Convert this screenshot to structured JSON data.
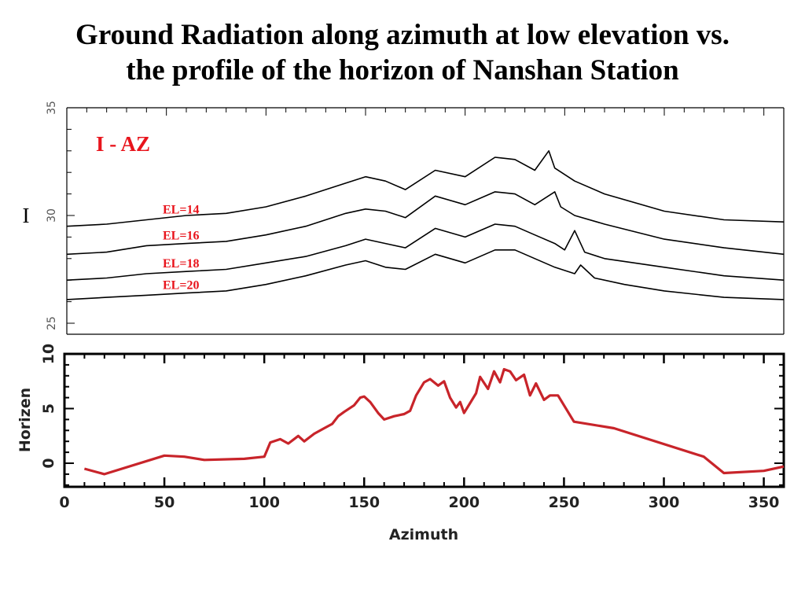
{
  "slide": {
    "title_line1": "Ground Radiation along azimuth at low elevation vs.",
    "title_line2": "the profile of the horizon of Nanshan Station"
  },
  "colors": {
    "annotation_red": "#e8141c",
    "horizon_line": "#c8242a",
    "trace_black": "#000000"
  },
  "chart_data": [
    {
      "type": "line",
      "title": "I - AZ",
      "ylabel": "I",
      "ylim": [
        25,
        35
      ],
      "yticks": [
        25,
        30,
        35
      ],
      "xlim": [
        0,
        360
      ],
      "series": [
        {
          "name": "EL=14",
          "x": [
            0,
            20,
            40,
            60,
            80,
            100,
            120,
            140,
            150,
            160,
            170,
            185,
            200,
            215,
            225,
            235,
            242,
            245,
            255,
            270,
            300,
            330,
            360
          ],
          "y": [
            29.5,
            29.6,
            29.8,
            30.0,
            30.1,
            30.4,
            30.9,
            31.5,
            31.8,
            31.6,
            31.2,
            32.1,
            31.8,
            32.7,
            32.6,
            32.1,
            33.0,
            32.2,
            31.6,
            31.0,
            30.2,
            29.8,
            29.7
          ]
        },
        {
          "name": "EL=16",
          "x": [
            0,
            20,
            40,
            60,
            80,
            100,
            120,
            140,
            150,
            160,
            170,
            185,
            200,
            215,
            225,
            235,
            245,
            248,
            255,
            270,
            300,
            330,
            360
          ],
          "y": [
            28.2,
            28.3,
            28.6,
            28.7,
            28.8,
            29.1,
            29.5,
            30.1,
            30.3,
            30.2,
            29.9,
            30.9,
            30.5,
            31.1,
            31.0,
            30.5,
            31.1,
            30.4,
            30.0,
            29.6,
            28.9,
            28.5,
            28.2
          ]
        },
        {
          "name": "EL=18",
          "x": [
            0,
            20,
            40,
            60,
            80,
            100,
            120,
            140,
            150,
            160,
            170,
            185,
            200,
            215,
            225,
            235,
            245,
            250,
            255,
            260,
            270,
            300,
            330,
            360
          ],
          "y": [
            27.0,
            27.1,
            27.3,
            27.4,
            27.5,
            27.8,
            28.1,
            28.6,
            28.9,
            28.7,
            28.5,
            29.4,
            29.0,
            29.6,
            29.5,
            29.1,
            28.7,
            28.4,
            29.3,
            28.3,
            28.0,
            27.6,
            27.2,
            27.0
          ]
        },
        {
          "name": "EL=20",
          "x": [
            0,
            20,
            40,
            60,
            80,
            100,
            120,
            140,
            150,
            160,
            170,
            185,
            200,
            215,
            225,
            235,
            245,
            255,
            258,
            265,
            280,
            300,
            330,
            360
          ],
          "y": [
            26.1,
            26.2,
            26.3,
            26.4,
            26.5,
            26.8,
            27.2,
            27.7,
            27.9,
            27.6,
            27.5,
            28.2,
            27.8,
            28.4,
            28.4,
            28.0,
            27.6,
            27.3,
            27.7,
            27.1,
            26.8,
            26.5,
            26.2,
            26.1
          ]
        }
      ]
    },
    {
      "type": "line",
      "xlabel": "Azimuth",
      "ylabel": "Horizen",
      "xlim": [
        0,
        360
      ],
      "ylim": [
        -2,
        10
      ],
      "xticks": [
        0,
        50,
        100,
        150,
        200,
        250,
        300,
        350
      ],
      "yticks": [
        0,
        5,
        10
      ],
      "series": [
        {
          "x": [
            10,
            20,
            50,
            60,
            70,
            90,
            100,
            103,
            108,
            112,
            117,
            120,
            125,
            130,
            134,
            137,
            140,
            145,
            148,
            150,
            153,
            157,
            160,
            165,
            170,
            173,
            176,
            180,
            183,
            187,
            190,
            193,
            196,
            198,
            200,
            203,
            206,
            208,
            212,
            215,
            218,
            220,
            223,
            226,
            230,
            233,
            236,
            240,
            243,
            247,
            250,
            255,
            275,
            320,
            330,
            350,
            360
          ],
          "y": [
            -0.5,
            -1.0,
            0.7,
            0.6,
            0.3,
            0.4,
            0.6,
            1.9,
            2.2,
            1.8,
            2.5,
            2.0,
            2.7,
            3.2,
            3.6,
            4.3,
            4.7,
            5.3,
            6.0,
            6.1,
            5.6,
            4.6,
            4.0,
            4.3,
            4.5,
            4.8,
            6.2,
            7.4,
            7.7,
            7.1,
            7.5,
            6.0,
            5.1,
            5.6,
            4.6,
            5.5,
            6.4,
            7.9,
            6.8,
            8.4,
            7.4,
            8.6,
            8.4,
            7.6,
            8.1,
            6.2,
            7.3,
            5.8,
            6.2,
            6.2,
            5.3,
            3.8,
            3.2,
            0.6,
            -0.9,
            -0.7,
            -0.3
          ]
        }
      ]
    }
  ]
}
